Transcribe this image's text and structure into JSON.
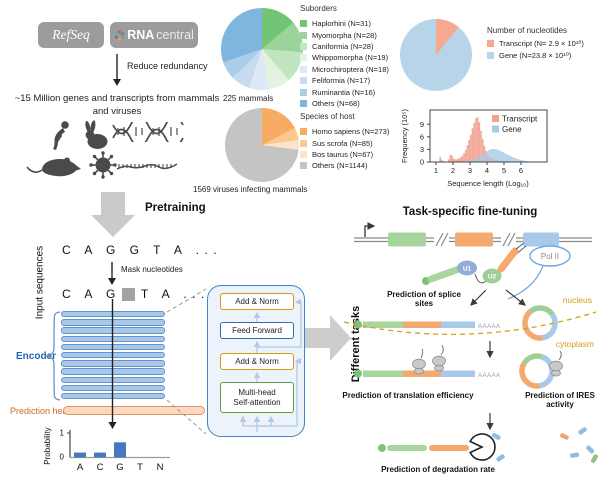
{
  "sources": {
    "refseq": "RefSeq",
    "rnacentral_bold": "RNA",
    "rnacentral_rest": "central",
    "reduce_redundancy": "Reduce redundancy",
    "dataset_note": "~15 Million genes and transcripts from mammals and viruses"
  },
  "pies": {
    "suborders": {
      "title": "Suborders",
      "caption": "225 mammals",
      "slices": [
        {
          "label": "Haplorhini (N=31)",
          "value": 31,
          "color": "#74c476"
        },
        {
          "label": "Myomorpha (N=28)",
          "value": 28,
          "color": "#9bd49a"
        },
        {
          "label": "Caniformia (N=28)",
          "value": 28,
          "color": "#c1e5c0"
        },
        {
          "label": "Whippomorpha (N=19)",
          "value": 19,
          "color": "#e2f3e0"
        },
        {
          "label": "Microchiroptera (N=18)",
          "value": 18,
          "color": "#dce9f6"
        },
        {
          "label": "Feliformia (N=17)",
          "value": 17,
          "color": "#c7dcf0"
        },
        {
          "label": "Ruminantia (N=16)",
          "value": 16,
          "color": "#aacde8"
        },
        {
          "label": "Others (N=68)",
          "value": 68,
          "color": "#7eb6e0"
        }
      ]
    },
    "nucleotides": {
      "title": "Number of nucleotides",
      "slices": [
        {
          "label": "Transcript (N= 2.9 × 10¹⁰)",
          "value": 2.9,
          "color": "#f6a890"
        },
        {
          "label": "Gene (N=23.8 × 10¹⁰)",
          "value": 23.8,
          "color": "#b7d4e8"
        }
      ]
    },
    "host": {
      "title": "Species of host",
      "caption": "1569 viruses infecting mammals",
      "slices": [
        {
          "label": "Homo sapiens (N=273)",
          "value": 273,
          "color": "#f7ab63"
        },
        {
          "label": "Sus scrofa (N=85)",
          "value": 85,
          "color": "#fbc98e"
        },
        {
          "label": "Bos taurus (N=67)",
          "value": 67,
          "color": "#fde3c8"
        },
        {
          "label": "Others (N=1144)",
          "value": 1144,
          "color": "#c4c4c4"
        }
      ]
    }
  },
  "histogram": {
    "ylabel": "Frequency (10⁵)",
    "xlabel": "Sequence length (Log₁₀)",
    "yticks": [
      0,
      3,
      6,
      9
    ],
    "xticks": [
      1,
      2,
      3,
      4,
      5,
      6
    ],
    "legend": [
      {
        "label": "Transcript",
        "color": "#f2a18f"
      },
      {
        "label": "Gene",
        "color": "#a9cbe5"
      }
    ]
  },
  "pretraining": {
    "title": "Pretraining",
    "input_label": "Input sequences",
    "sequence": "C A G G T A ...",
    "mask_step_label": "Mask nucleotides",
    "masked_prefix": "C A G",
    "masked_suffix": "T A ...",
    "encoder_label": "Encoder",
    "prediction_head_label": "Prediction head",
    "probability": {
      "ylabel": "Probability",
      "ymax": "1",
      "ymin": "0",
      "categories": [
        "A",
        "C",
        "G",
        "T",
        "N"
      ],
      "values": [
        0.2,
        0.2,
        0.62,
        0,
        0
      ],
      "bar_color": "#4678c0"
    }
  },
  "transformer": {
    "add_norm_1": "Add & Norm",
    "feed_forward": "Feed Forward",
    "add_norm_2": "Add & Norm",
    "attention_line1": "Multi-head",
    "attention_line2": "Self-attention"
  },
  "finetuning": {
    "title": "Task-specific fine-tuning",
    "axis_label": "Different tasks",
    "pol2": "Pol II",
    "u1": "U1",
    "u2": "U2",
    "nucleus": "nucleus",
    "cytoplasm": "cytoplasm",
    "polya_1": "AAAAA",
    "polya_2": "AAAAA",
    "splice_line1": "Prediction of splice",
    "splice_line2": "sites",
    "translation_label": "Prediction of translation efficiency",
    "ires_line1": "Prediction of IRES",
    "ires_line2": "activity",
    "degradation_label": "Prediction of degradation rate"
  },
  "chart_data": [
    {
      "name": "suborders",
      "type": "pie",
      "title": "Suborders",
      "caption": "225 mammals",
      "labels": [
        "Haplorhini",
        "Myomorpha",
        "Caniformia",
        "Whippomorpha",
        "Microchiroptera",
        "Feliformia",
        "Ruminantia",
        "Others"
      ],
      "values": [
        31,
        28,
        28,
        19,
        18,
        17,
        16,
        68
      ]
    },
    {
      "name": "host_species",
      "type": "pie",
      "title": "Species of host",
      "caption": "1569 viruses infecting mammals",
      "labels": [
        "Homo sapiens",
        "Sus scrofa",
        "Bos taurus",
        "Others"
      ],
      "values": [
        273,
        85,
        67,
        1144
      ]
    },
    {
      "name": "nucleotides",
      "type": "pie",
      "title": "Number of nucleotides",
      "labels": [
        "Transcript (N= 2.9 × 10¹⁰)",
        "Gene (N=23.8 × 10¹⁰)"
      ],
      "values": [
        2.9,
        23.8
      ]
    },
    {
      "name": "length_distribution",
      "type": "area",
      "xlabel": "Sequence length (Log₁₀)",
      "ylabel": "Frequency (10⁵)",
      "xlim": [
        0.6,
        7.0
      ],
      "ylim": [
        0,
        12
      ],
      "legend_position": "top-right",
      "series": [
        {
          "name": "Transcript",
          "color": "#f2a18f",
          "style": "histogram",
          "bins": [
            [
              1.25,
              1.2
            ],
            [
              1.35,
              0.5
            ],
            [
              1.45,
              0.2
            ],
            [
              1.75,
              0.6
            ],
            [
              1.85,
              1.7
            ],
            [
              1.95,
              1.5
            ],
            [
              2.05,
              0.8
            ],
            [
              2.15,
              0.6
            ],
            [
              2.25,
              0.7
            ],
            [
              2.35,
              0.9
            ],
            [
              2.45,
              1.1
            ],
            [
              2.55,
              1.5
            ],
            [
              2.65,
              2.1
            ],
            [
              2.75,
              2.9
            ],
            [
              2.85,
              4.0
            ],
            [
              2.95,
              5.2
            ],
            [
              3.05,
              6.5
            ],
            [
              3.15,
              8.0
            ],
            [
              3.25,
              9.3
            ],
            [
              3.35,
              10.4
            ],
            [
              3.45,
              10.7
            ],
            [
              3.55,
              9.5
            ],
            [
              3.65,
              7.4
            ],
            [
              3.75,
              5.4
            ],
            [
              3.85,
              3.8
            ],
            [
              3.95,
              2.6
            ],
            [
              4.05,
              1.8
            ],
            [
              4.15,
              1.3
            ],
            [
              4.25,
              1.0
            ],
            [
              4.35,
              0.8
            ],
            [
              4.45,
              0.6
            ],
            [
              4.55,
              0.5
            ],
            [
              4.65,
              0.4
            ],
            [
              4.75,
              0.3
            ],
            [
              4.85,
              0.25
            ],
            [
              4.95,
              0.2
            ],
            [
              5.05,
              0.15
            ],
            [
              5.15,
              0.1
            ]
          ]
        },
        {
          "name": "Gene",
          "color": "#a9cbe5",
          "style": "density",
          "points": [
            [
              2.5,
              0.05
            ],
            [
              2.8,
              0.2
            ],
            [
              3.1,
              0.5
            ],
            [
              3.4,
              0.9
            ],
            [
              3.7,
              1.6
            ],
            [
              3.9,
              2.2
            ],
            [
              4.1,
              2.8
            ],
            [
              4.3,
              3.1
            ],
            [
              4.5,
              3.1
            ],
            [
              4.7,
              2.8
            ],
            [
              4.9,
              2.4
            ],
            [
              5.1,
              2.0
            ],
            [
              5.3,
              1.6
            ],
            [
              5.5,
              1.2
            ],
            [
              5.7,
              0.9
            ],
            [
              5.9,
              0.6
            ],
            [
              6.1,
              0.4
            ],
            [
              6.3,
              0.25
            ],
            [
              6.5,
              0.15
            ]
          ]
        }
      ]
    },
    {
      "name": "masked_probability",
      "type": "bar",
      "ylabel": "Probability",
      "ylim": [
        0,
        1
      ],
      "categories": [
        "A",
        "C",
        "G",
        "T",
        "N"
      ],
      "values": [
        0.2,
        0.2,
        0.62,
        0,
        0
      ]
    }
  ]
}
